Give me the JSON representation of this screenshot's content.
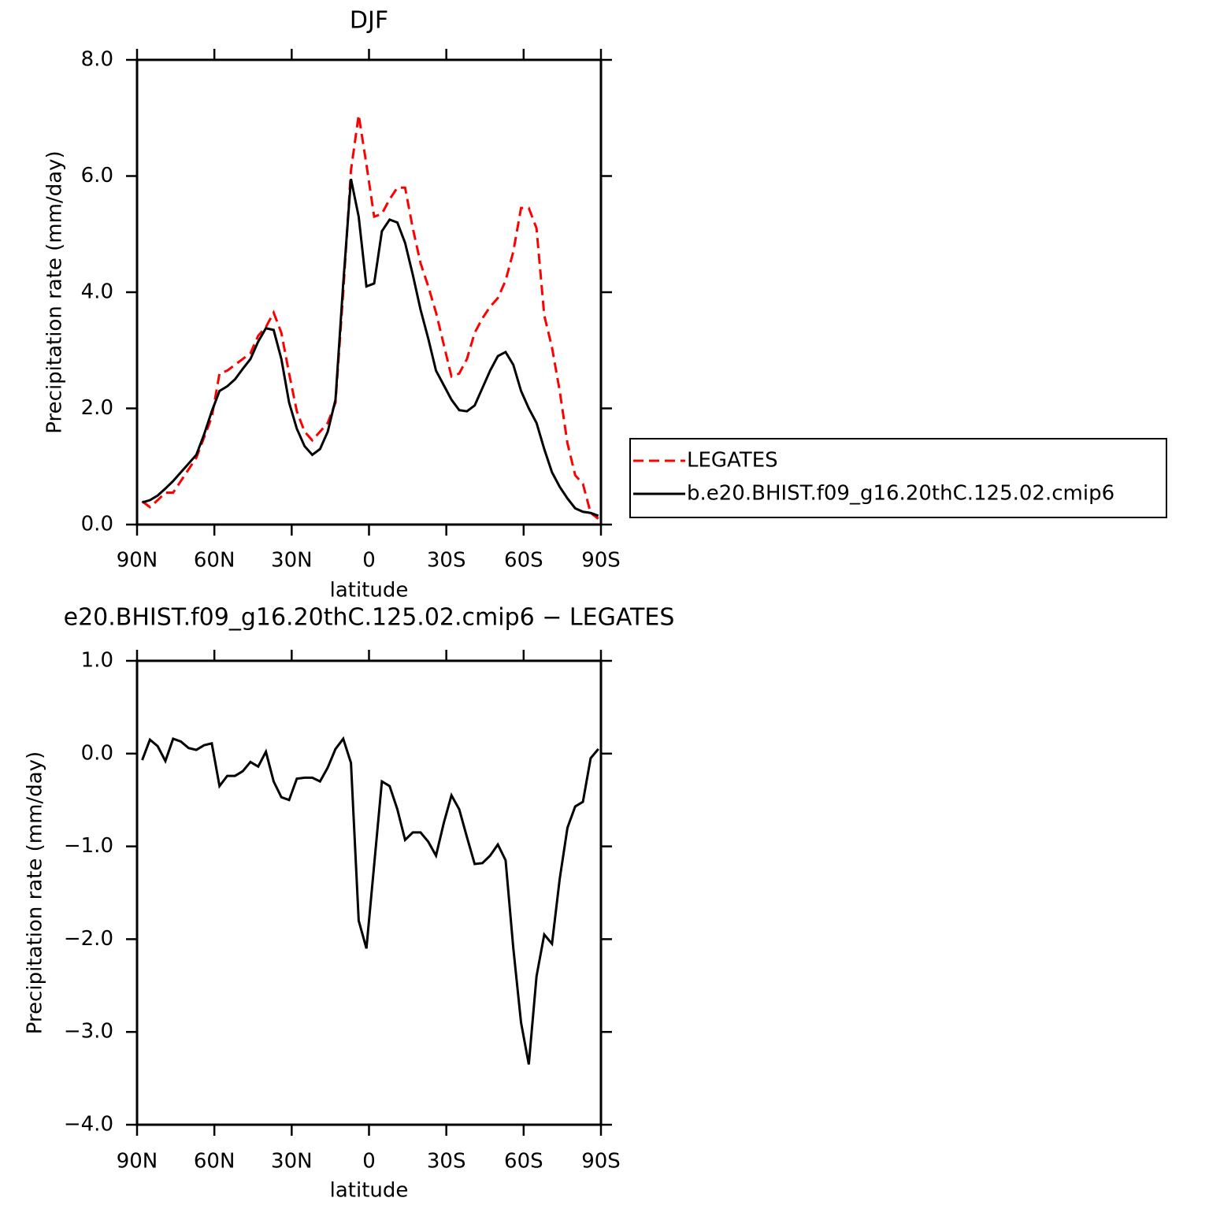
{
  "chart_data": [
    {
      "type": "line",
      "title": "DJF",
      "xlabel": "latitude",
      "ylabel": "Precipitation rate (mm/day)",
      "x": [
        88,
        85,
        82,
        79,
        76,
        73,
        70,
        67,
        64,
        61,
        58,
        55,
        52,
        49,
        46,
        43,
        40,
        37,
        34,
        31,
        28,
        25,
        22,
        19,
        16,
        13,
        10,
        7,
        4,
        1,
        -2,
        -5,
        -8,
        -11,
        -14,
        -17,
        -20,
        -23,
        -26,
        -29,
        -32,
        -35,
        -38,
        -41,
        -44,
        -47,
        -50,
        -53,
        -56,
        -59,
        -62,
        -65,
        -68,
        -71,
        -74,
        -77,
        -80,
        -83,
        -86,
        -89
      ],
      "series": [
        {
          "name": "LEGATES",
          "color": "#ff0000",
          "dash": true,
          "values": [
            0.4,
            0.3,
            0.42,
            0.55,
            0.55,
            0.75,
            0.95,
            1.15,
            1.5,
            1.85,
            2.6,
            2.65,
            2.75,
            2.85,
            2.95,
            3.25,
            3.4,
            3.65,
            3.3,
            2.6,
            1.95,
            1.6,
            1.45,
            1.6,
            1.75,
            2.1,
            4.0,
            6.1,
            7.05,
            6.2,
            5.3,
            5.35,
            5.6,
            5.8,
            5.8,
            5.1,
            4.5,
            4.1,
            3.65,
            3.1,
            2.55,
            2.6,
            2.85,
            3.3,
            3.55,
            3.75,
            3.9,
            4.2,
            4.7,
            5.45,
            5.45,
            5.1,
            3.6,
            3.05,
            2.3,
            1.4,
            0.85,
            0.7,
            0.2,
            0.1
          ]
        },
        {
          "name": "b.e20.BHIST.f09_g16.20thC.125.02.cmip6",
          "color": "#000000",
          "dash": false,
          "values": [
            0.38,
            0.42,
            0.5,
            0.62,
            0.75,
            0.9,
            1.05,
            1.2,
            1.55,
            1.95,
            2.3,
            2.38,
            2.5,
            2.68,
            2.85,
            3.15,
            3.38,
            3.35,
            2.85,
            2.1,
            1.65,
            1.35,
            1.2,
            1.3,
            1.6,
            2.15,
            4.15,
            5.95,
            5.3,
            4.1,
            4.15,
            5.05,
            5.25,
            5.2,
            4.85,
            4.3,
            3.7,
            3.2,
            2.65,
            2.4,
            2.15,
            1.97,
            1.95,
            2.05,
            2.35,
            2.65,
            2.9,
            2.97,
            2.75,
            2.3,
            2.0,
            1.75,
            1.3,
            0.9,
            0.65,
            0.45,
            0.28,
            0.22,
            0.2,
            0.15
          ]
        }
      ],
      "xlim": [
        90,
        -90
      ],
      "xticks": [
        {
          "value": 90,
          "label": "90N"
        },
        {
          "value": 60,
          "label": "60N"
        },
        {
          "value": 30,
          "label": "30N"
        },
        0,
        {
          "value": -30,
          "label": "30S"
        },
        {
          "value": -60,
          "label": "60S"
        },
        {
          "value": -90,
          "label": "90S"
        }
      ],
      "ylim": [
        0,
        8
      ],
      "yticks": [
        {
          "value": 0,
          "label": "0.0"
        },
        {
          "value": 2,
          "label": "2.0"
        },
        {
          "value": 4,
          "label": "4.0"
        },
        {
          "value": 6,
          "label": "6.0"
        },
        {
          "value": 8,
          "label": "8.0"
        }
      ],
      "legend": "right"
    },
    {
      "type": "line",
      "title": "e20.BHIST.f09_g16.20thC.125.02.cmip6 − LEGATES",
      "xlabel": "latitude",
      "ylabel": "Precipitation rate (mm/day)",
      "x": [
        88,
        85,
        82,
        79,
        76,
        73,
        70,
        67,
        64,
        61,
        58,
        55,
        52,
        49,
        46,
        43,
        40,
        37,
        34,
        31,
        28,
        25,
        22,
        19,
        16,
        13,
        10,
        7,
        4,
        1,
        -2,
        -5,
        -8,
        -11,
        -14,
        -17,
        -20,
        -23,
        -26,
        -29,
        -32,
        -35,
        -38,
        -41,
        -44,
        -47,
        -50,
        -53,
        -56,
        -59,
        -62,
        -65,
        -68,
        -71,
        -74,
        -77,
        -80,
        -83,
        -86,
        -89
      ],
      "series": [
        {
          "color": "#000000",
          "dash": false,
          "values": [
            -0.07,
            0.15,
            0.08,
            -0.08,
            0.16,
            0.13,
            0.06,
            0.04,
            0.09,
            0.11,
            -0.35,
            -0.24,
            -0.24,
            -0.19,
            -0.09,
            -0.14,
            0.02,
            -0.3,
            -0.47,
            -0.5,
            -0.27,
            -0.26,
            -0.26,
            -0.3,
            -0.15,
            0.05,
            0.16,
            -0.1,
            -1.8,
            -2.1,
            -1.2,
            -0.3,
            -0.35,
            -0.6,
            -0.93,
            -0.85,
            -0.85,
            -0.95,
            -1.1,
            -0.75,
            -0.45,
            -0.6,
            -0.9,
            -1.19,
            -1.18,
            -1.1,
            -0.98,
            -1.15,
            -2.1,
            -2.9,
            -3.35,
            -2.4,
            -1.95,
            -2.05,
            -1.35,
            -0.8,
            -0.57,
            -0.52,
            -0.05,
            0.05
          ]
        }
      ],
      "xlim": [
        90,
        -90
      ],
      "xticks": [
        {
          "value": 90,
          "label": "90N"
        },
        {
          "value": 60,
          "label": "60N"
        },
        {
          "value": 30,
          "label": "30N"
        },
        0,
        {
          "value": -30,
          "label": "30S"
        },
        {
          "value": -60,
          "label": "60S"
        },
        {
          "value": -90,
          "label": "90S"
        }
      ],
      "ylim": [
        -4,
        1
      ],
      "yticks": [
        {
          "value": -4,
          "label": "−4.0"
        },
        {
          "value": -3,
          "label": "−3.0"
        },
        {
          "value": -2,
          "label": "−2.0"
        },
        {
          "value": -1,
          "label": "−1.0"
        },
        {
          "value": 0,
          "label": "0.0"
        },
        {
          "value": 1,
          "label": "1.0"
        }
      ]
    }
  ]
}
